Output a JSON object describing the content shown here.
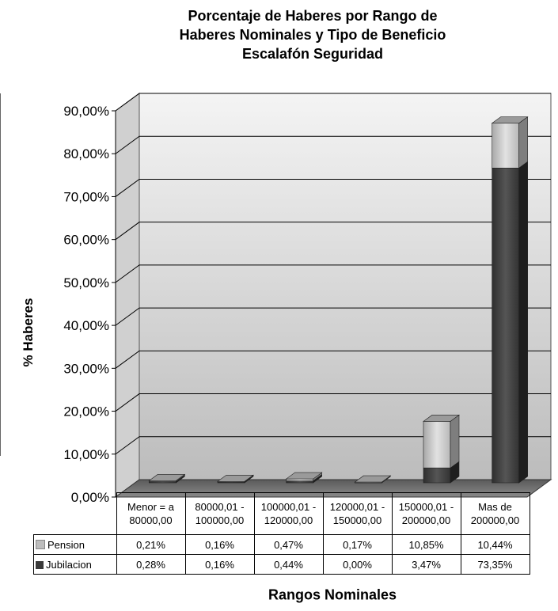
{
  "chart_data": {
    "type": "bar",
    "stacked": true,
    "three_d": true,
    "title": [
      "Porcentaje de Haberes por Rango de",
      "Haberes Nominales y Tipo de Beneficio",
      "Escalafón Seguridad"
    ],
    "ylabel": "% Haberes",
    "xlabel": "Rangos Nominales",
    "ylim": [
      0,
      90
    ],
    "yticks": [
      "0,00%",
      "10,00%",
      "20,00%",
      "30,00%",
      "40,00%",
      "50,00%",
      "60,00%",
      "70,00%",
      "80,00%",
      "90,00%"
    ],
    "categories": [
      [
        "Menor = a",
        "80000,00"
      ],
      [
        "80000,01 -",
        "100000,00"
      ],
      [
        "100000,01 -",
        "120000,00"
      ],
      [
        "120000,01 -",
        "150000,00"
      ],
      [
        "150000,01 -",
        "200000,00"
      ],
      [
        "Mas de",
        "200000,00"
      ]
    ],
    "series": [
      {
        "name": "Jubilacion",
        "color": "#3a3a3a",
        "values": [
          0.28,
          0.16,
          0.44,
          0.0,
          3.47,
          73.35
        ],
        "labels": [
          "0,28%",
          "0,16%",
          "0,44%",
          "0,00%",
          "3,47%",
          "73,35%"
        ]
      },
      {
        "name": "Pension",
        "color": "#bdbdbd",
        "values": [
          0.21,
          0.16,
          0.47,
          0.17,
          10.85,
          10.44
        ],
        "labels": [
          "0,21%",
          "0,16%",
          "0,47%",
          "0,17%",
          "10,85%",
          "10,44%"
        ]
      }
    ],
    "grid": true,
    "legend": "table"
  }
}
